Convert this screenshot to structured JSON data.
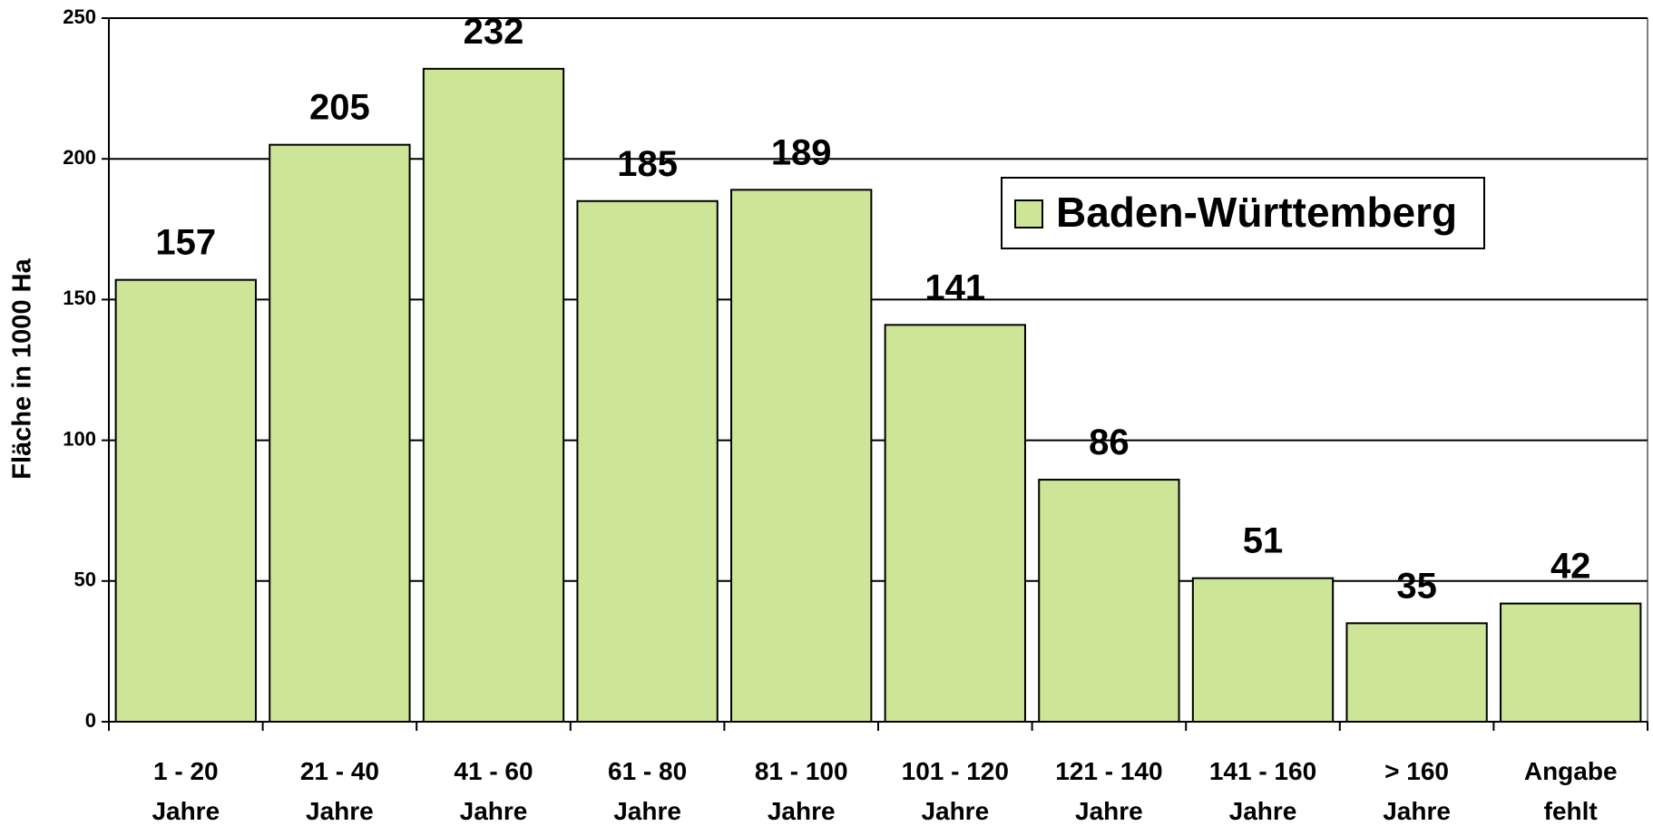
{
  "chart_data": {
    "type": "bar",
    "ylabel": "Fläche in 1000 Ha",
    "categories": [
      [
        "1 - 20",
        "Jahre"
      ],
      [
        "21 - 40",
        "Jahre"
      ],
      [
        "41 - 60",
        "Jahre"
      ],
      [
        "61 - 80",
        "Jahre"
      ],
      [
        "81 - 100",
        "Jahre"
      ],
      [
        "101 - 120",
        "Jahre"
      ],
      [
        "121 - 140",
        "Jahre"
      ],
      [
        "141 - 160",
        "Jahre"
      ],
      [
        "> 160",
        "Jahre"
      ],
      [
        "Angabe",
        "fehlt"
      ]
    ],
    "series": [
      {
        "name": "Baden-Württemberg",
        "color": "#cde597",
        "values": [
          157,
          205,
          232,
          185,
          189,
          141,
          86,
          51,
          35,
          42
        ]
      }
    ],
    "ylim": [
      0,
      250
    ],
    "yticks": [
      0,
      50,
      100,
      150,
      200,
      250
    ],
    "grid": true,
    "legend": "upper right"
  }
}
